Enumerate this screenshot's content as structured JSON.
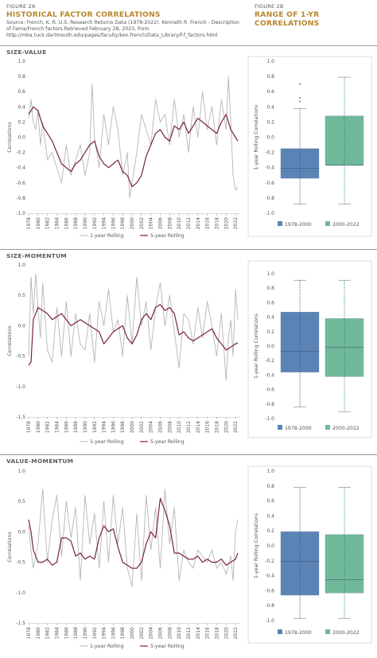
{
  "fig_a": {
    "number": "FIGURE 2A",
    "title": "HISTORICAL FACTOR CORRELATIONS",
    "source": "Source: French, K. R. U.S. Research Returns Data (1978-2022). Kenneth R. French - Description of Fama/French factors.Retrieved February 28, 2023, from http://mba.tuck.dartmouth.edu/pages/faculty/ken.french/Data_Library/f-f_factors.html"
  },
  "fig_b": {
    "number": "FIGURE 2B",
    "title": "RANGE OF 1-YR CORRELATIONS"
  },
  "sections": [
    {
      "label": "SIZE-VALUE"
    },
    {
      "label": "SIZE-MOMENTUM"
    },
    {
      "label": "VALUE-MOMENTUM"
    }
  ],
  "colors": {
    "line_1yr": "#b5b5b5",
    "line_5yr": "#7a1f4a",
    "box_a": "#5b84b6",
    "box_b": "#6fb99a",
    "dots_a": "#2c5f96",
    "dots_b": "#2f8a64",
    "title": "#b8862b"
  },
  "chart_data": [
    {
      "type": "line",
      "panel": "SIZE-VALUE",
      "ylabel": "Correlations",
      "ylim": [
        -1.0,
        1.0
      ],
      "yticks": [
        "1.0",
        "0.8",
        "0.6",
        "0.4",
        "0.2",
        "0.0",
        "-0.2",
        "-0.4",
        "-0.6",
        "-0.8",
        "-1.0"
      ],
      "yticks_v": [
        1.0,
        0.8,
        0.6,
        0.4,
        0.2,
        0.0,
        -0.2,
        -0.4,
        -0.6,
        -0.8,
        -1.0
      ],
      "xticks": [
        "1978",
        "1980",
        "1982",
        "1984",
        "1986",
        "1988",
        "1990",
        "1992",
        "1994",
        "1996",
        "1998",
        "2000",
        "2002",
        "2004",
        "2006",
        "2008",
        "2010",
        "2012",
        "2014",
        "2016",
        "2018",
        "2020",
        "2022"
      ],
      "legend": [
        "1-year Rolling",
        "5-year Rolling"
      ],
      "series": [
        {
          "name": "1-year Rolling",
          "x": [
            1978,
            1978.5,
            1979,
            1979.5,
            1980,
            1980.5,
            1981,
            1982,
            1983,
            1984,
            1985,
            1986,
            1987,
            1988,
            1989,
            1990,
            1991,
            1991.5,
            1992,
            1993,
            1994,
            1995,
            1996,
            1997,
            1998,
            1999,
            1999.5,
            2000,
            2001,
            2002,
            2003,
            2004,
            2005,
            2006,
            2007,
            2008,
            2009,
            2010,
            2011,
            2012,
            2013,
            2014,
            2015,
            2016,
            2017,
            2018,
            2019,
            2020,
            2020.5,
            2021,
            2021.5,
            2022,
            2022.5
          ],
          "y": [
            0.25,
            0.5,
            0.2,
            0.1,
            0.35,
            -0.1,
            0.2,
            -0.3,
            -0.2,
            -0.4,
            -0.6,
            -0.1,
            -0.5,
            -0.3,
            -0.1,
            -0.5,
            -0.2,
            0.7,
            0.0,
            -0.4,
            0.3,
            -0.1,
            0.4,
            0.1,
            -0.5,
            -0.2,
            -0.8,
            -0.6,
            -0.2,
            0.3,
            0.1,
            -0.1,
            0.5,
            0.2,
            0.3,
            -0.1,
            0.5,
            0.0,
            0.3,
            -0.2,
            0.4,
            0.0,
            0.6,
            0.1,
            0.4,
            -0.1,
            0.5,
            0.1,
            0.8,
            0.2,
            -0.5,
            -0.7,
            -0.65
          ]
        },
        {
          "name": "5-year Rolling",
          "x": [
            1978,
            1979,
            1980,
            1981,
            1982,
            1983,
            1984,
            1985,
            1986,
            1987,
            1988,
            1989,
            1990,
            1991,
            1992,
            1993,
            1994,
            1995,
            1996,
            1997,
            1998,
            1999,
            2000,
            2001,
            2002,
            2003,
            2004,
            2005,
            2006,
            2007,
            2008,
            2009,
            2010,
            2011,
            2012,
            2013,
            2014,
            2015,
            2016,
            2017,
            2018,
            2019,
            2020,
            2021,
            2022,
            2022.5
          ],
          "y": [
            0.3,
            0.4,
            0.35,
            0.15,
            0.05,
            -0.05,
            -0.2,
            -0.35,
            -0.4,
            -0.45,
            -0.35,
            -0.3,
            -0.2,
            -0.1,
            -0.05,
            -0.25,
            -0.35,
            -0.4,
            -0.35,
            -0.3,
            -0.45,
            -0.5,
            -0.65,
            -0.6,
            -0.5,
            -0.25,
            -0.1,
            0.05,
            0.1,
            0.0,
            -0.05,
            0.15,
            0.1,
            0.2,
            0.05,
            0.15,
            0.25,
            0.2,
            0.15,
            0.1,
            0.05,
            0.2,
            0.3,
            0.1,
            0.0,
            -0.05
          ]
        }
      ]
    },
    {
      "type": "box",
      "panel": "SIZE-VALUE",
      "ylabel": "1-year Rolling Correlations",
      "ylim": [
        -1.0,
        1.0
      ],
      "yticks": [
        "1.0",
        "0.8",
        "0.6",
        "0.4",
        "0.2",
        "0.0",
        "-0.2",
        "-0.4",
        "-0.6",
        "-0.8",
        "-1.0"
      ],
      "yticks_v": [
        1.0,
        0.8,
        0.6,
        0.4,
        0.2,
        0.0,
        -0.2,
        -0.4,
        -0.6,
        -0.8,
        -1.0
      ],
      "legend": [
        "1978-2000",
        "2000-2022"
      ],
      "boxes": [
        {
          "name": "1978-2000",
          "min": -0.88,
          "q1": -0.54,
          "median": -0.41,
          "q3": -0.15,
          "max": 0.38,
          "outliers": [
            0.47,
            0.52,
            0.7
          ]
        },
        {
          "name": "2000-2022",
          "min": -0.88,
          "q1": -0.37,
          "median": -0.37,
          "q3": 0.28,
          "max": 0.79,
          "outliers": []
        }
      ]
    },
    {
      "type": "line",
      "panel": "SIZE-MOMENTUM",
      "ylabel": "Correlations",
      "ylim": [
        -1.5,
        1.0
      ],
      "yticks": [
        "1.0",
        "0.5",
        "0.0",
        "-0.5",
        "-1.0",
        "-1.5"
      ],
      "yticks_v": [
        1.0,
        0.5,
        0.0,
        -0.5,
        -1.0,
        -1.5
      ],
      "xticks": [
        "1978",
        "1980",
        "1982",
        "1984",
        "1986",
        "1988",
        "1990",
        "1992",
        "1994",
        "1996",
        "1998",
        "2000",
        "2002",
        "2004",
        "2006",
        "2008",
        "2010",
        "2012",
        "2014",
        "2016",
        "2018",
        "2020",
        "2022"
      ],
      "legend": [
        "1-year Rolling",
        "5-year Rolling"
      ],
      "series": [
        {
          "name": "1-year Rolling",
          "x": [
            1978,
            1978.5,
            1979,
            1979.5,
            1980,
            1980.5,
            1981,
            1982,
            1983,
            1984,
            1985,
            1986,
            1987,
            1988,
            1989,
            1990,
            1991,
            1992,
            1993,
            1994,
            1995,
            1996,
            1997,
            1998,
            1999,
            2000,
            2001,
            2002,
            2003,
            2004,
            2005,
            2006,
            2007,
            2008,
            2009,
            2010,
            2011,
            2012,
            2013,
            2014,
            2015,
            2016,
            2017,
            2018,
            2019,
            2020,
            2020.5,
            2021,
            2021.5,
            2022,
            2022.5
          ],
          "y": [
            -0.5,
            0.8,
            0.2,
            0.85,
            0.3,
            -0.2,
            0.7,
            -0.4,
            -0.6,
            0.3,
            -0.5,
            0.4,
            -0.5,
            0.2,
            -0.3,
            -0.4,
            0.2,
            -0.6,
            0.4,
            0.0,
            0.6,
            -0.1,
            0.1,
            -0.5,
            0.5,
            -0.3,
            0.8,
            0.0,
            0.4,
            -0.4,
            0.3,
            0.7,
            0.0,
            0.5,
            -0.1,
            -0.7,
            0.2,
            0.1,
            -0.3,
            0.3,
            -0.2,
            0.4,
            0.0,
            -0.5,
            0.2,
            -0.9,
            -0.2,
            0.1,
            -0.5,
            0.6,
            0.1
          ]
        },
        {
          "name": "5-year Rolling",
          "x": [
            1978,
            1978.5,
            1979,
            1980,
            1981,
            1982,
            1983,
            1984,
            1985,
            1986,
            1987,
            1988,
            1989,
            1990,
            1991,
            1992,
            1993,
            1994,
            1995,
            1996,
            1997,
            1998,
            1999,
            2000,
            2001,
            2002,
            2003,
            2004,
            2005,
            2006,
            2007,
            2008,
            2009,
            2010,
            2011,
            2012,
            2013,
            2014,
            2015,
            2016,
            2017,
            2018,
            2019,
            2020,
            2021,
            2022,
            2022.5
          ],
          "y": [
            -0.65,
            -0.6,
            0.1,
            0.3,
            0.25,
            0.2,
            0.1,
            0.15,
            0.2,
            0.1,
            0.0,
            0.05,
            0.1,
            0.05,
            0.0,
            -0.05,
            -0.1,
            -0.3,
            -0.2,
            -0.1,
            -0.05,
            0.0,
            -0.2,
            -0.3,
            -0.15,
            0.1,
            0.2,
            0.1,
            0.3,
            0.35,
            0.25,
            0.3,
            0.2,
            -0.15,
            -0.1,
            -0.2,
            -0.25,
            -0.2,
            -0.15,
            -0.1,
            -0.05,
            -0.2,
            -0.3,
            -0.4,
            -0.35,
            -0.3,
            -0.28
          ]
        }
      ]
    },
    {
      "type": "box",
      "panel": "SIZE-MOMENTUM",
      "ylabel": "1-year Rolling Correlations",
      "ylim": [
        -1.0,
        1.0
      ],
      "yticks": [
        "1.0",
        "0.8",
        "0.6",
        "0.4",
        "0.2",
        "0.0",
        "-0.2",
        "-0.4",
        "-0.6",
        "-0.8",
        "-1.0"
      ],
      "yticks_v": [
        1.0,
        0.8,
        0.6,
        0.4,
        0.2,
        0.0,
        -0.2,
        -0.4,
        -0.6,
        -0.8,
        -1.0
      ],
      "legend": [
        "1978-2000",
        "2000-2022"
      ],
      "boxes": [
        {
          "name": "1978-2000",
          "min": -0.84,
          "q1": -0.36,
          "median": -0.07,
          "q3": 0.47,
          "max": 0.91,
          "outliers": []
        },
        {
          "name": "2000-2022",
          "min": -0.91,
          "q1": -0.42,
          "median": -0.02,
          "q3": 0.38,
          "max": 0.91,
          "outliers": []
        }
      ]
    },
    {
      "type": "line",
      "panel": "VALUE-MOMENTUM",
      "ylabel": "Correlations",
      "ylim": [
        -1.5,
        1.0
      ],
      "yticks": [
        "1.0",
        "0.5",
        "0.0",
        "-0.5",
        "-1.0",
        "-1.5"
      ],
      "yticks_v": [
        1.0,
        0.5,
        0.0,
        -0.5,
        -1.0,
        -1.5
      ],
      "xticks": [
        "1978",
        "1980",
        "1982",
        "1984",
        "1986",
        "1988",
        "1990",
        "1992",
        "1994",
        "1996",
        "1998",
        "2000",
        "2002",
        "2004",
        "2006",
        "2008",
        "2010",
        "2012",
        "2014",
        "2016",
        "2018",
        "2020",
        "2022"
      ],
      "legend": [
        "1-year Rolling",
        "5-year Rolling"
      ],
      "series": [
        {
          "name": "1-year Rolling",
          "x": [
            1978,
            1978.5,
            1979,
            1980,
            1981,
            1982,
            1983,
            1984,
            1985,
            1986,
            1987,
            1988,
            1989,
            1990,
            1991,
            1992,
            1993,
            1994,
            1995,
            1996,
            1997,
            1998,
            1999,
            2000,
            2001,
            2002,
            2003,
            2004,
            2005,
            2006,
            2007,
            2008,
            2009,
            2010,
            2011,
            2012,
            2013,
            2014,
            2015,
            2016,
            2017,
            2018,
            2019,
            2020,
            2021,
            2021.5,
            2022,
            2022.5
          ],
          "y": [
            0.1,
            -0.3,
            -0.6,
            -0.2,
            0.7,
            -0.5,
            0.2,
            0.6,
            -0.4,
            0.5,
            -0.1,
            0.4,
            -0.8,
            0.6,
            -0.2,
            0.3,
            -0.6,
            0.5,
            -0.5,
            0.6,
            -0.2,
            0.4,
            -0.6,
            -0.9,
            0.3,
            -0.8,
            0.6,
            -0.3,
            0.4,
            -0.6,
            0.7,
            -0.2,
            0.4,
            -0.8,
            -0.3,
            -0.5,
            -0.6,
            -0.3,
            -0.4,
            -0.5,
            -0.3,
            -0.6,
            -0.5,
            -0.7,
            -0.4,
            -0.8,
            0.0,
            0.2
          ]
        },
        {
          "name": "5-year Rolling",
          "x": [
            1978,
            1978.5,
            1979,
            1980,
            1981,
            1982,
            1983,
            1984,
            1985,
            1986,
            1987,
            1988,
            1989,
            1990,
            1991,
            1992,
            1993,
            1994,
            1995,
            1996,
            1997,
            1998,
            1999,
            2000,
            2001,
            2002,
            2003,
            2004,
            2005,
            2006,
            2007,
            2008,
            2009,
            2010,
            2011,
            2012,
            2013,
            2014,
            2015,
            2016,
            2017,
            2018,
            2019,
            2020,
            2021,
            2022,
            2022.5
          ],
          "y": [
            0.2,
            0.0,
            -0.3,
            -0.5,
            -0.5,
            -0.45,
            -0.55,
            -0.5,
            -0.1,
            -0.1,
            -0.15,
            -0.4,
            -0.35,
            -0.45,
            -0.4,
            -0.45,
            -0.1,
            0.1,
            0.0,
            0.05,
            -0.25,
            -0.5,
            -0.55,
            -0.6,
            -0.6,
            -0.5,
            -0.2,
            0.0,
            -0.1,
            0.55,
            0.35,
            0.1,
            -0.35,
            -0.35,
            -0.4,
            -0.45,
            -0.45,
            -0.4,
            -0.5,
            -0.45,
            -0.5,
            -0.5,
            -0.45,
            -0.55,
            -0.5,
            -0.45,
            -0.35
          ]
        }
      ]
    },
    {
      "type": "box",
      "panel": "VALUE-MOMENTUM",
      "ylabel": "1-year Rolling Correlations",
      "ylim": [
        -1.0,
        1.0
      ],
      "yticks": [
        "1.0",
        "0.8",
        "0.6",
        "0.4",
        "0.2",
        "0.0",
        "-0.2",
        "-0.4",
        "-0.6",
        "-0.8",
        "-1.0"
      ],
      "yticks_v": [
        1.0,
        0.8,
        0.6,
        0.4,
        0.2,
        0.0,
        -0.2,
        -0.4,
        -0.6,
        -0.8,
        -1.0
      ],
      "legend": [
        "1978-2000",
        "2000-2022"
      ],
      "boxes": [
        {
          "name": "1978-2000",
          "min": -0.97,
          "q1": -0.66,
          "median": -0.21,
          "q3": 0.19,
          "max": 0.78,
          "outliers": []
        },
        {
          "name": "2000-2022",
          "min": -0.97,
          "q1": -0.63,
          "median": -0.45,
          "q3": 0.15,
          "max": 0.78,
          "outliers": []
        }
      ]
    }
  ]
}
